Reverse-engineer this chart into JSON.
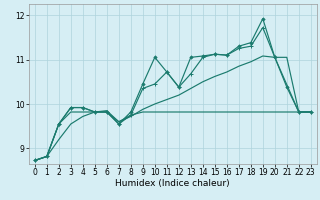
{
  "xlabel": "Humidex (Indice chaleur)",
  "xlim": [
    -0.5,
    23.5
  ],
  "ylim": [
    8.65,
    12.25
  ],
  "yticks": [
    9,
    10,
    11,
    12
  ],
  "xticks": [
    0,
    1,
    2,
    3,
    4,
    5,
    6,
    7,
    8,
    9,
    10,
    11,
    12,
    13,
    14,
    15,
    16,
    17,
    18,
    19,
    20,
    21,
    22,
    23
  ],
  "bg_color": "#d6eef4",
  "grid_color": "#aed4dc",
  "line_color": "#1b7b6e",
  "line1_x": [
    0,
    1,
    2,
    3,
    4,
    5,
    6,
    7,
    8,
    9,
    10,
    11,
    12,
    13,
    14,
    15,
    16,
    17,
    18,
    19,
    20,
    21,
    22,
    23
  ],
  "line1_y": [
    8.73,
    8.82,
    9.55,
    9.92,
    9.92,
    9.82,
    9.82,
    9.55,
    9.82,
    10.45,
    11.05,
    10.72,
    10.38,
    11.05,
    11.08,
    11.12,
    11.1,
    11.3,
    11.38,
    11.92,
    11.05,
    10.38,
    9.82,
    9.82
  ],
  "line2_x": [
    0,
    1,
    2,
    3,
    4,
    5,
    6,
    7,
    8,
    9,
    10,
    11,
    12,
    13,
    14,
    15,
    16,
    17,
    18,
    19,
    20,
    22,
    23
  ],
  "line2_y": [
    8.73,
    8.82,
    9.55,
    9.92,
    9.92,
    9.82,
    9.82,
    9.55,
    9.75,
    10.35,
    10.45,
    10.72,
    10.38,
    10.68,
    11.05,
    11.12,
    11.1,
    11.25,
    11.3,
    11.72,
    11.05,
    9.82,
    9.82
  ],
  "line3_x": [
    0,
    1,
    2,
    3,
    4,
    5,
    6,
    7,
    8,
    9,
    10,
    11,
    12,
    13,
    14,
    15,
    16,
    17,
    18,
    19,
    20,
    21,
    22,
    23
  ],
  "line3_y": [
    8.73,
    8.82,
    9.2,
    9.55,
    9.72,
    9.82,
    9.85,
    9.6,
    9.72,
    9.88,
    10.0,
    10.1,
    10.2,
    10.35,
    10.5,
    10.62,
    10.72,
    10.85,
    10.95,
    11.08,
    11.05,
    11.05,
    9.82,
    9.82
  ],
  "line4_x": [
    0,
    1,
    2,
    3,
    4,
    5,
    6,
    7,
    8,
    9,
    10,
    11,
    12,
    13,
    14,
    15,
    16,
    17,
    18,
    20,
    21,
    22,
    23
  ],
  "line4_y": [
    8.73,
    8.82,
    9.55,
    9.82,
    9.82,
    9.82,
    9.82,
    9.6,
    9.75,
    9.82,
    9.82,
    9.82,
    9.82,
    9.82,
    9.82,
    9.82,
    9.82,
    9.82,
    9.82,
    9.82,
    9.82,
    9.82,
    9.82
  ]
}
